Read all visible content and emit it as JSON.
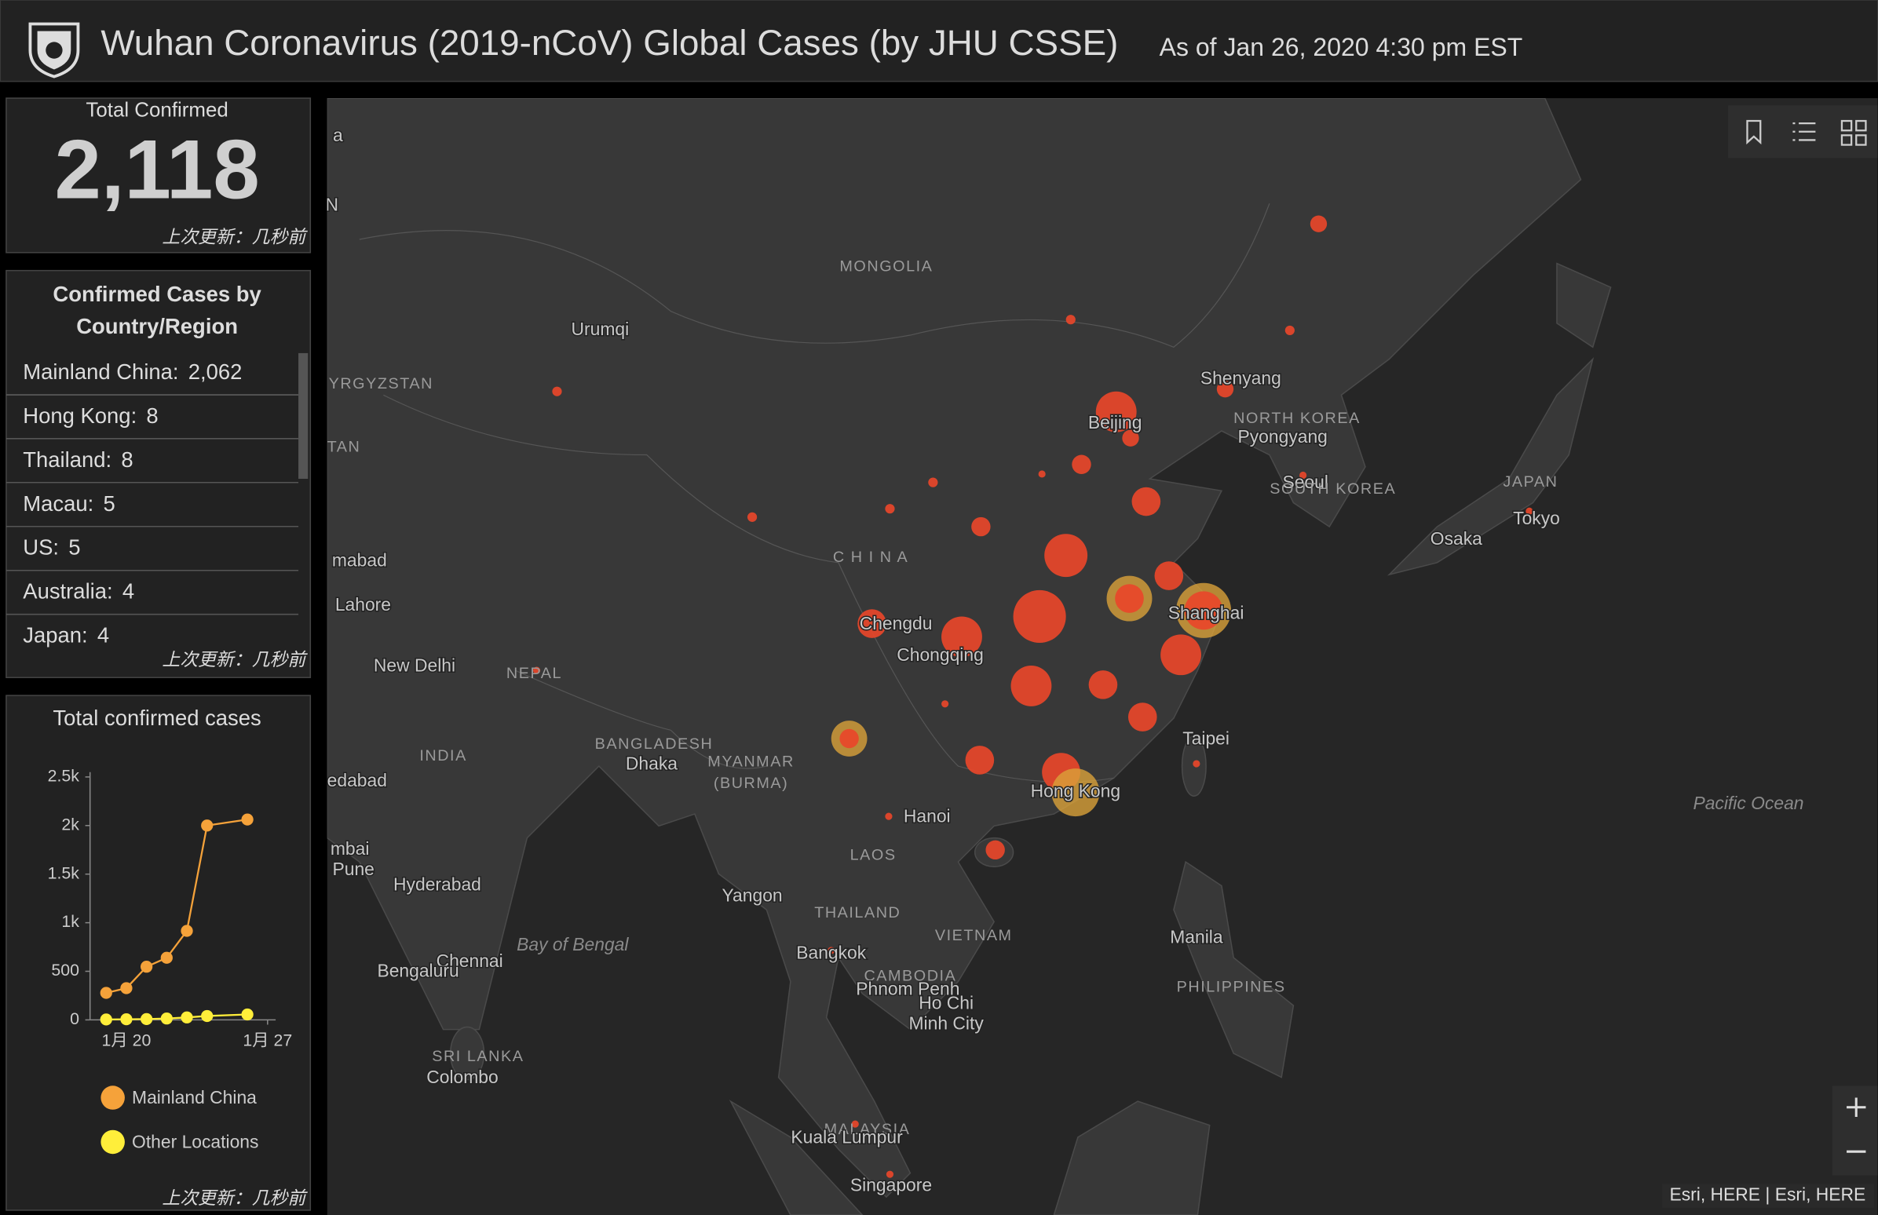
{
  "header": {
    "title": "Wuhan Coronavirus (2019-nCoV) Global Cases (by JHU CSSE)",
    "subtitle": "As of Jan 26, 2020 4:30 pm EST"
  },
  "total": {
    "label": "Total Confirmed",
    "value": "2,118",
    "updated": "上次更新：几秒前"
  },
  "country_list": {
    "title_lines": [
      "Confirmed Cases by",
      "Country/Region"
    ],
    "items": [
      {
        "name": "Mainland China:",
        "value": "2,062"
      },
      {
        "name": "Hong Kong:",
        "value": "8"
      },
      {
        "name": "Thailand:",
        "value": "8"
      },
      {
        "name": "Macau:",
        "value": "5"
      },
      {
        "name": "US:",
        "value": "5"
      },
      {
        "name": "Australia:",
        "value": "4"
      },
      {
        "name": "Japan:",
        "value": "4"
      }
    ],
    "updated": "上次更新：几秒前"
  },
  "chart_data": {
    "type": "line",
    "title": "Total confirmed cases",
    "x": [
      19,
      20,
      21,
      22,
      23,
      24,
      26
    ],
    "xlim": [
      18.2,
      27.4
    ],
    "xticks": [
      {
        "value": 20,
        "label": "1月 20"
      },
      {
        "value": 27,
        "label": "1月 27"
      }
    ],
    "ylim": [
      0,
      2550
    ],
    "yticks": [
      0,
      500,
      {
        "value": 1000,
        "label": "1k"
      },
      {
        "value": 1500,
        "label": "1.5k"
      },
      {
        "value": 2000,
        "label": "2k"
      },
      {
        "value": 2500,
        "label": "2.5k"
      }
    ],
    "series": [
      {
        "name": "Mainland China",
        "color": "#f5a23a",
        "values": [
          278,
          326,
          547,
          639,
          916,
          2000,
          2062
        ]
      },
      {
        "name": "Other Locations",
        "color": "#ffee3a",
        "values": [
          4,
          6,
          8,
          14,
          25,
          40,
          56
        ]
      }
    ],
    "footnote": "上次更新：几秒前"
  },
  "map": {
    "labels": [
      "Urumqi",
      "MONGOLIA",
      "YRGYZSTAN",
      "Shenyang",
      "NORTH KOREA",
      "Pyongyang",
      "Beijing",
      "Seoul",
      "SOUTH KOREA",
      "JAPAN",
      "Tokyo",
      "Osaka",
      "C H I N A",
      "Shanghai",
      "Chengdu",
      "Chongqing",
      "Lahore",
      "New Delhi",
      "NEPAL",
      "INDIA",
      "BANGLADESH",
      "Dhaka",
      "MYANMAR",
      "(BURMA)",
      "Taipei",
      "Hong Kong",
      "Hanoi",
      "Pacific Ocean",
      "LAOS",
      "Yangon",
      "Hyderabad",
      "THAILAND",
      "VIETNAM",
      "Manila",
      "Bay of Bengal",
      "Bangkok",
      "Chennai",
      "Bengaluru",
      "CAMBODIA",
      "Phnom Penh",
      "Ho Chi",
      "Minh City",
      "PHILIPPINES",
      "SRI LANKA",
      "Colombo",
      "MALAYSIA",
      "Kuala Lumpur",
      "Singapore",
      "a",
      "N",
      "TAN",
      "mabad",
      "edabad",
      "mbai",
      "Pune"
    ],
    "attribution": "Esri, HERE | Esri, HERE"
  }
}
